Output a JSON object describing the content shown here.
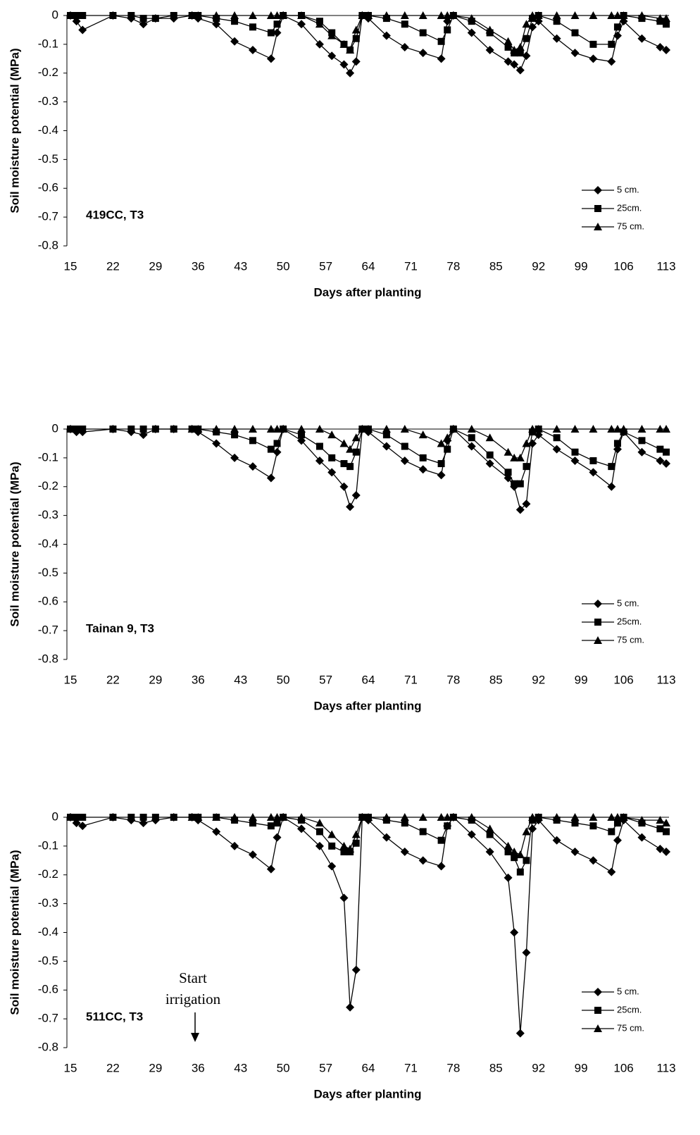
{
  "chart_data": [
    {
      "type": "line",
      "label": "419CC, T3",
      "xlabel": "Days after planting",
      "ylabel": "Soil moisture potential (MPa)",
      "xlim": [
        15,
        113
      ],
      "xticks": [
        15,
        22,
        29,
        36,
        43,
        50,
        57,
        64,
        71,
        78,
        85,
        92,
        99,
        106,
        113
      ],
      "ylim": [
        -0.8,
        0
      ],
      "yticks": [
        0,
        -0.1,
        -0.2,
        -0.3,
        -0.4,
        -0.5,
        -0.6,
        -0.7,
        -0.8
      ],
      "x": [
        15,
        16,
        17,
        22,
        25,
        27,
        29,
        32,
        35,
        36,
        39,
        42,
        45,
        48,
        49,
        50,
        53,
        56,
        58,
        60,
        61,
        62,
        63,
        64,
        67,
        70,
        73,
        76,
        77,
        78,
        81,
        84,
        87,
        88,
        89,
        90,
        91,
        92,
        95,
        98,
        101,
        104,
        105,
        106,
        109,
        112,
        113
      ],
      "series": [
        {
          "name": "5 cm.",
          "color": "#000000",
          "marker": "diamond",
          "values": [
            0,
            -0.02,
            -0.05,
            0,
            -0.01,
            -0.03,
            -0.01,
            -0.01,
            0,
            -0.01,
            -0.03,
            -0.09,
            -0.12,
            -0.15,
            -0.06,
            0,
            -0.03,
            -0.1,
            -0.14,
            -0.17,
            -0.2,
            -0.16,
            0,
            -0.01,
            -0.07,
            -0.11,
            -0.13,
            -0.15,
            -0.02,
            0,
            -0.06,
            -0.12,
            -0.16,
            -0.17,
            -0.19,
            -0.14,
            -0.04,
            -0.02,
            -0.08,
            -0.13,
            -0.15,
            -0.16,
            -0.07,
            -0.02,
            -0.08,
            -0.11,
            -0.12
          ]
        },
        {
          "name": "25cm.",
          "color": "#000000",
          "marker": "square",
          "values": [
            0,
            0,
            0,
            0,
            0,
            -0.01,
            -0.01,
            0,
            0,
            0,
            -0.01,
            -0.02,
            -0.04,
            -0.06,
            -0.03,
            0,
            0,
            -0.02,
            -0.06,
            -0.1,
            -0.12,
            -0.08,
            0,
            0,
            -0.01,
            -0.03,
            -0.06,
            -0.09,
            -0.05,
            0,
            -0.02,
            -0.06,
            -0.11,
            -0.13,
            -0.13,
            -0.08,
            -0.01,
            0,
            -0.02,
            -0.06,
            -0.1,
            -0.1,
            -0.04,
            0,
            -0.01,
            -0.02,
            -0.03
          ]
        },
        {
          "name": "75 cm.",
          "color": "#000000",
          "marker": "triangle",
          "values": [
            null,
            null,
            null,
            null,
            null,
            null,
            null,
            null,
            0,
            0,
            0,
            0,
            0,
            0,
            0,
            0,
            0,
            -0.03,
            -0.07,
            -0.1,
            -0.12,
            -0.05,
            0,
            0,
            0,
            0,
            0,
            0,
            0,
            0,
            -0.01,
            -0.05,
            -0.09,
            -0.12,
            -0.11,
            -0.03,
            0,
            0,
            0,
            0,
            0,
            0,
            0,
            0,
            0,
            -0.01,
            -0.01
          ]
        }
      ]
    },
    {
      "type": "line",
      "label": "Tainan 9, T3",
      "xlabel": "Days after planting",
      "ylabel": "Soil moisture potential (MPa)",
      "xlim": [
        15,
        113
      ],
      "xticks": [
        15,
        22,
        29,
        36,
        43,
        50,
        57,
        64,
        71,
        78,
        85,
        92,
        99,
        106,
        113
      ],
      "ylim": [
        -0.8,
        0
      ],
      "yticks": [
        0,
        -0.1,
        -0.2,
        -0.3,
        -0.4,
        -0.5,
        -0.6,
        -0.7,
        -0.8
      ],
      "x": [
        15,
        16,
        17,
        22,
        25,
        27,
        29,
        32,
        35,
        36,
        39,
        42,
        45,
        48,
        49,
        50,
        53,
        56,
        58,
        60,
        61,
        62,
        63,
        64,
        67,
        70,
        73,
        76,
        77,
        78,
        81,
        84,
        87,
        88,
        89,
        90,
        91,
        92,
        95,
        98,
        101,
        104,
        105,
        106,
        109,
        112,
        113
      ],
      "series": [
        {
          "name": "5 cm.",
          "color": "#000000",
          "marker": "diamond",
          "values": [
            0,
            -0.01,
            -0.01,
            0,
            -0.01,
            -0.02,
            0,
            0,
            0,
            -0.01,
            -0.05,
            -0.1,
            -0.13,
            -0.17,
            -0.08,
            0,
            -0.04,
            -0.11,
            -0.15,
            -0.2,
            -0.27,
            -0.23,
            0,
            -0.01,
            -0.06,
            -0.11,
            -0.14,
            -0.16,
            -0.04,
            0,
            -0.06,
            -0.12,
            -0.17,
            -0.2,
            -0.28,
            -0.26,
            -0.05,
            -0.02,
            -0.07,
            -0.11,
            -0.15,
            -0.2,
            -0.07,
            -0.01,
            -0.08,
            -0.11,
            -0.12
          ]
        },
        {
          "name": "25cm.",
          "color": "#000000",
          "marker": "square",
          "values": [
            0,
            0,
            0,
            0,
            0,
            0,
            0,
            0,
            0,
            0,
            -0.01,
            -0.02,
            -0.04,
            -0.07,
            -0.05,
            0,
            -0.02,
            -0.06,
            -0.1,
            -0.12,
            -0.13,
            -0.08,
            0,
            0,
            -0.02,
            -0.06,
            -0.1,
            -0.12,
            -0.07,
            0,
            -0.03,
            -0.09,
            -0.15,
            -0.19,
            -0.19,
            -0.13,
            -0.01,
            0,
            -0.03,
            -0.08,
            -0.11,
            -0.13,
            -0.05,
            -0.01,
            -0.04,
            -0.07,
            -0.08
          ]
        },
        {
          "name": "75 cm.",
          "color": "#000000",
          "marker": "triangle",
          "values": [
            null,
            null,
            null,
            null,
            null,
            null,
            null,
            null,
            0,
            0,
            0,
            0,
            0,
            0,
            0,
            0,
            0,
            0,
            -0.02,
            -0.05,
            -0.07,
            -0.03,
            0,
            0,
            0,
            0,
            -0.02,
            -0.05,
            -0.03,
            0,
            0,
            -0.03,
            -0.08,
            -0.1,
            -0.1,
            -0.05,
            0,
            0,
            0,
            0,
            0,
            0,
            0,
            0,
            0,
            0,
            0
          ]
        }
      ]
    },
    {
      "type": "line",
      "label": "511CC, T3",
      "xlabel": "Days after planting",
      "ylabel": "Soil moisture potential (MPa)",
      "annotation": [
        "Start",
        "irrigation"
      ],
      "xlim": [
        15,
        113
      ],
      "xticks": [
        15,
        22,
        29,
        36,
        43,
        50,
        57,
        64,
        71,
        78,
        85,
        92,
        99,
        106,
        113
      ],
      "ylim": [
        -0.8,
        0
      ],
      "yticks": [
        0,
        -0.1,
        -0.2,
        -0.3,
        -0.4,
        -0.5,
        -0.6,
        -0.7,
        -0.8
      ],
      "x": [
        15,
        16,
        17,
        22,
        25,
        27,
        29,
        32,
        35,
        36,
        39,
        42,
        45,
        48,
        49,
        50,
        53,
        56,
        58,
        60,
        61,
        62,
        63,
        64,
        67,
        70,
        73,
        76,
        77,
        78,
        81,
        84,
        87,
        88,
        89,
        90,
        91,
        92,
        95,
        98,
        101,
        104,
        105,
        106,
        109,
        112,
        113
      ],
      "series": [
        {
          "name": "5 cm.",
          "color": "#000000",
          "marker": "diamond",
          "values": [
            0,
            -0.02,
            -0.03,
            0,
            -0.01,
            -0.02,
            -0.01,
            0,
            0,
            -0.01,
            -0.05,
            -0.1,
            -0.13,
            -0.18,
            -0.07,
            0,
            -0.04,
            -0.1,
            -0.17,
            -0.28,
            -0.66,
            -0.53,
            0,
            -0.01,
            -0.07,
            -0.12,
            -0.15,
            -0.17,
            -0.03,
            0,
            -0.06,
            -0.12,
            -0.21,
            -0.4,
            -0.75,
            -0.47,
            -0.04,
            -0.01,
            -0.08,
            -0.12,
            -0.15,
            -0.19,
            -0.08,
            -0.01,
            -0.07,
            -0.11,
            -0.12
          ]
        },
        {
          "name": "25cm.",
          "color": "#000000",
          "marker": "square",
          "values": [
            0,
            0,
            0,
            0,
            0,
            0,
            0,
            0,
            0,
            0,
            0,
            -0.01,
            -0.02,
            -0.03,
            -0.02,
            0,
            -0.01,
            -0.05,
            -0.1,
            -0.12,
            -0.12,
            -0.09,
            0,
            0,
            -0.01,
            -0.02,
            -0.05,
            -0.08,
            -0.03,
            0,
            -0.01,
            -0.06,
            -0.12,
            -0.14,
            -0.19,
            -0.15,
            -0.01,
            0,
            -0.01,
            -0.02,
            -0.03,
            -0.05,
            -0.02,
            0,
            -0.02,
            -0.04,
            -0.05
          ]
        },
        {
          "name": "75 cm.",
          "color": "#000000",
          "marker": "triangle",
          "values": [
            null,
            null,
            null,
            null,
            null,
            null,
            null,
            null,
            0,
            0,
            0,
            0,
            0,
            0,
            0,
            0,
            0,
            -0.02,
            -0.06,
            -0.1,
            -0.11,
            -0.06,
            0,
            0,
            0,
            0,
            0,
            0,
            0,
            0,
            0,
            -0.04,
            -0.1,
            -0.12,
            -0.13,
            -0.05,
            0,
            0,
            0,
            0,
            0,
            0,
            0,
            0,
            -0.01,
            -0.01,
            -0.02
          ]
        }
      ]
    }
  ]
}
